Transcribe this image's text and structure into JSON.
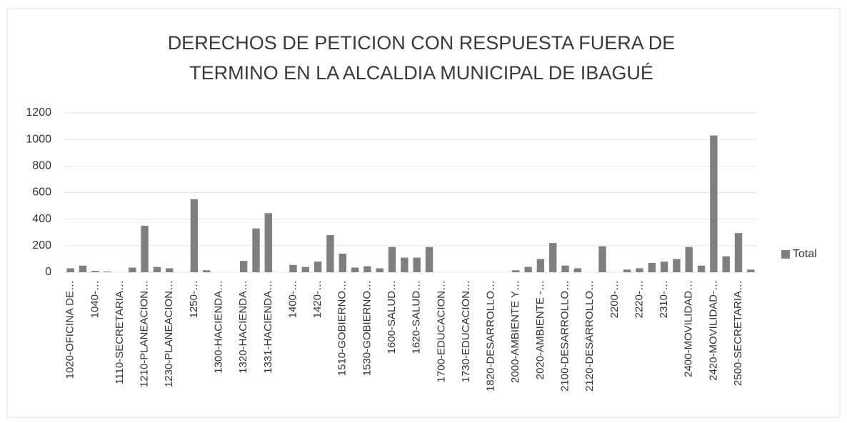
{
  "chart_data": {
    "type": "bar",
    "title": [
      "DERECHOS DE PETICION CON RESPUESTA FUERA DE",
      "TERMINO EN LA ALCALDIA MUNICIPAL DE IBAGUÉ"
    ],
    "categories": [
      "1020-OFICINA DE…",
      null,
      "1040-…",
      null,
      "1110-SECRETARIA…",
      null,
      "1210-PLANEACION…",
      null,
      "1230-PLANEACION…",
      null,
      "1250-…",
      null,
      "1300-HACIENDA…",
      null,
      "1320-HACIENDA…",
      null,
      "1331-HACIENDA…",
      null,
      "1400-…",
      null,
      "1420-…",
      null,
      "1510-GOBIERNO…",
      null,
      "1530-GOBIERNO…",
      null,
      "1600-SALUD…",
      null,
      "1620-SALUD…",
      null,
      "1700-EDUCACION…",
      null,
      "1730-EDUCACION…",
      null,
      "1820-DESARROLLO…",
      null,
      "2000-AMBIENTE Y…",
      null,
      "2020-AMBIENTE -…",
      null,
      "2100-DESARROLLO…",
      null,
      "2120-DESARROLLO…",
      null,
      "2200-…",
      null,
      "2220-…",
      null,
      "2310-…",
      null,
      "2400-MOVILIDAD…",
      null,
      "2420-MOVILIDAD-…",
      null,
      "2500-SECRETARIA…",
      null
    ],
    "series": [
      {
        "name": "Total",
        "color": "#7f7f7f",
        "values": [
          30,
          50,
          10,
          5,
          0,
          35,
          350,
          40,
          30,
          0,
          550,
          15,
          0,
          0,
          85,
          330,
          445,
          0,
          55,
          40,
          80,
          280,
          140,
          35,
          45,
          30,
          190,
          110,
          110,
          190,
          0,
          0,
          0,
          0,
          0,
          0,
          15,
          40,
          100,
          220,
          50,
          30,
          0,
          195,
          0,
          20,
          30,
          70,
          80,
          100,
          190,
          50,
          1030,
          120,
          295,
          20
        ]
      }
    ],
    "ylim": [
      0,
      1200
    ],
    "yticks": [
      0,
      200,
      400,
      600,
      800,
      1000,
      1200
    ],
    "grid": true,
    "legend": "right"
  }
}
